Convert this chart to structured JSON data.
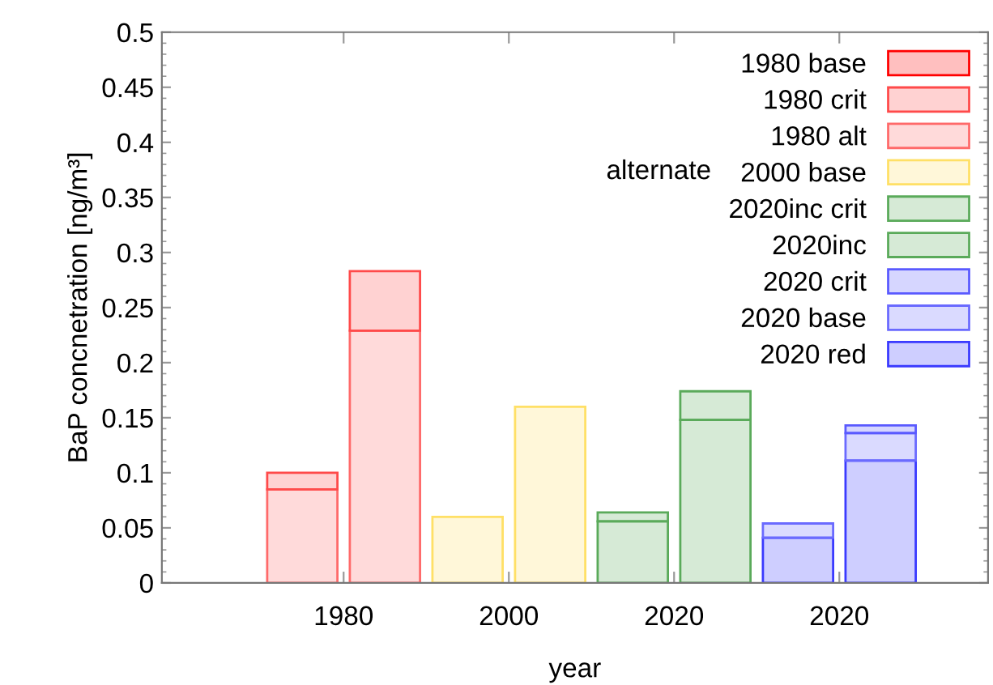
{
  "chart_data": {
    "type": "bar",
    "stacked": true,
    "xlabel": "year",
    "ylabel": "BaP concnetration [ng/m³]",
    "categories": [
      "1980",
      null,
      "2000",
      null,
      "2020",
      null,
      "2020",
      null
    ],
    "ylim": [
      0,
      0.5
    ],
    "yticks": [
      0,
      0.05,
      0.1,
      0.15,
      0.2,
      0.25,
      0.3,
      0.35,
      0.4,
      0.45,
      0.5
    ],
    "grid": false,
    "legend": "top right",
    "annotations": [
      "alternate"
    ],
    "series": [
      {
        "name": "2020 red",
        "color": "#3a3aff",
        "values": [
          null,
          null,
          null,
          null,
          null,
          null,
          0.041,
          0.111
        ]
      },
      {
        "name": "2020 base",
        "color": "#6a6aff",
        "values": [
          null,
          null,
          null,
          null,
          null,
          null,
          0.013,
          0.025
        ]
      },
      {
        "name": "2020 crit",
        "color": "#5a5aff",
        "values": [
          null,
          null,
          null,
          null,
          null,
          null,
          null,
          0.007
        ]
      },
      {
        "name": "2020inc",
        "color": "#5aaa5a",
        "values": [
          null,
          null,
          null,
          null,
          0.056,
          0.148,
          null,
          null
        ]
      },
      {
        "name": "2020inc crit",
        "color": "#5aaa5a",
        "values": [
          null,
          null,
          null,
          null,
          0.008,
          0.026,
          null,
          null
        ]
      },
      {
        "name": "2000 base",
        "color": "#ffe066",
        "values": [
          null,
          null,
          0.06,
          0.16,
          null,
          null,
          null,
          null
        ]
      },
      {
        "name": "1980 alt",
        "color": "#ff6a6a",
        "values": [
          0.085,
          0.229,
          null,
          null,
          null,
          null,
          null,
          null
        ]
      },
      {
        "name": "1980 crit",
        "color": "#ff4a4a",
        "values": [
          0.015,
          0.054,
          null,
          null,
          null,
          null,
          null,
          null
        ]
      },
      {
        "name": "1980 base",
        "color": "#ff0000",
        "values": [
          null,
          null,
          null,
          null,
          null,
          null,
          null,
          null
        ]
      }
    ]
  }
}
